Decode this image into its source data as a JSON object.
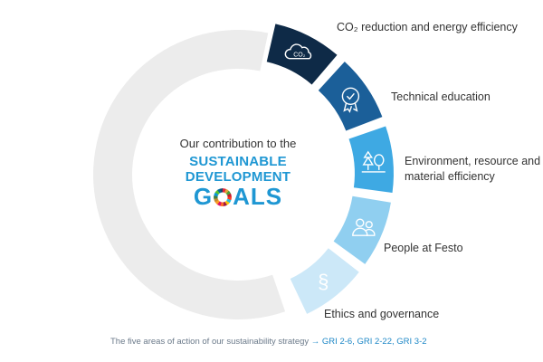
{
  "center": {
    "intro": "Our contribution to the",
    "sdg_line1": "SUSTAINABLE",
    "sdg_line2": "DEVELOPMENT",
    "sdg_line3_start": "G",
    "sdg_line3_end": "ALS"
  },
  "segments": [
    {
      "label_lines": [
        "CO₂ reduction and energy efficiency"
      ],
      "icon": "co2-cloud-icon",
      "icon_text": "CO₂",
      "color": "#0e2a47",
      "icon_color": "#ffffff"
    },
    {
      "label_lines": [
        "Technical education"
      ],
      "icon": "award-rosette-icon",
      "color": "#1b5f99",
      "icon_color": "#ffffff"
    },
    {
      "label_lines": [
        "Environment, resource and",
        "material efficiency"
      ],
      "icon": "trees-icon",
      "color": "#3ea9e3",
      "icon_color": "#ffffff"
    },
    {
      "label_lines": [
        "People at Festo"
      ],
      "icon": "people-icon",
      "color": "#90cff0",
      "icon_color": "#ffffff"
    },
    {
      "label_lines": [
        "Ethics and governance"
      ],
      "icon": "section-sign-icon",
      "icon_text": "§",
      "color": "#cce8f8",
      "icon_color": "#ffffff"
    }
  ],
  "remaining_ring_color": "#ececec",
  "footer": {
    "text": "The five areas of action of our sustainability strategy",
    "link": "→ GRI 2-6, GRI 2-22, GRI 3-2"
  }
}
